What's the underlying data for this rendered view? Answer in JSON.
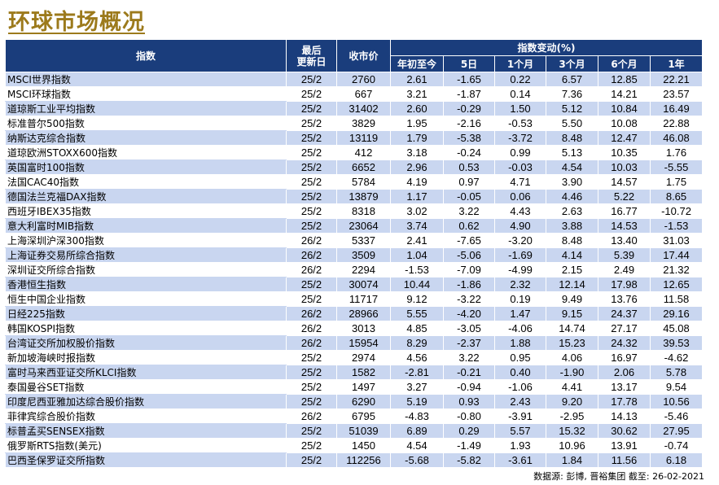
{
  "title": "环球市场概况",
  "headers": {
    "index": "指数",
    "last_update": [
      "最后",
      "更新日"
    ],
    "close": "收市价",
    "change_group": "指数变动(%)",
    "periods": [
      "年初至今",
      "5日",
      "1个月",
      "3个月",
      "6个月",
      "1年"
    ]
  },
  "rows": [
    [
      "MSCI世界指数",
      "25/2",
      "2760",
      "2.61",
      "-1.65",
      "0.22",
      "6.57",
      "12.85",
      "22.21"
    ],
    [
      "MSCI环球指数",
      "25/2",
      "667",
      "3.21",
      "-1.87",
      "0.14",
      "7.36",
      "14.21",
      "23.57"
    ],
    [
      "道琼斯工业平均指数",
      "25/2",
      "31402",
      "2.60",
      "-0.29",
      "1.50",
      "5.12",
      "10.84",
      "16.49"
    ],
    [
      "标准普尔500指数",
      "25/2",
      "3829",
      "1.95",
      "-2.16",
      "-0.53",
      "5.50",
      "10.08",
      "22.88"
    ],
    [
      "纳斯达克综合指数",
      "25/2",
      "13119",
      "1.79",
      "-5.38",
      "-3.72",
      "8.48",
      "12.47",
      "46.08"
    ],
    [
      "道琼欧洲STOXX600指数",
      "25/2",
      "412",
      "3.18",
      "-0.24",
      "0.99",
      "5.13",
      "10.35",
      "1.76"
    ],
    [
      "英国富时100指数",
      "25/2",
      "6652",
      "2.96",
      "0.53",
      "-0.03",
      "4.54",
      "10.03",
      "-5.55"
    ],
    [
      "法国CAC40指数",
      "25/2",
      "5784",
      "4.19",
      "0.97",
      "4.71",
      "3.90",
      "14.57",
      "1.75"
    ],
    [
      "德国法兰克福DAX指数",
      "25/2",
      "13879",
      "1.17",
      "-0.05",
      "0.06",
      "4.46",
      "5.22",
      "8.65"
    ],
    [
      "西班牙IBEX35指数",
      "25/2",
      "8318",
      "3.02",
      "3.22",
      "4.43",
      "2.63",
      "16.77",
      "-10.72"
    ],
    [
      "意大利富时MIB指数",
      "25/2",
      "23064",
      "3.74",
      "0.62",
      "4.90",
      "3.88",
      "14.53",
      "-1.53"
    ],
    [
      "上海深圳沪深300指数",
      "26/2",
      "5337",
      "2.41",
      "-7.65",
      "-3.20",
      "8.48",
      "13.40",
      "31.03"
    ],
    [
      "上海证券交易所综合指数",
      "26/2",
      "3509",
      "1.04",
      "-5.06",
      "-1.69",
      "4.14",
      "5.39",
      "17.44"
    ],
    [
      "深圳证交所综合指数",
      "26/2",
      "2294",
      "-1.53",
      "-7.09",
      "-4.99",
      "2.15",
      "2.49",
      "21.32"
    ],
    [
      "香港恒生指数",
      "25/2",
      "30074",
      "10.44",
      "-1.86",
      "2.32",
      "12.14",
      "17.98",
      "12.65"
    ],
    [
      "恒生中国企业指数",
      "25/2",
      "11717",
      "9.12",
      "-3.22",
      "0.19",
      "9.49",
      "13.76",
      "11.58"
    ],
    [
      "日经225指数",
      "26/2",
      "28966",
      "5.55",
      "-4.20",
      "1.47",
      "9.15",
      "24.37",
      "29.16"
    ],
    [
      "韩国KOSPI指数",
      "26/2",
      "3013",
      "4.85",
      "-3.05",
      "-4.06",
      "14.74",
      "27.17",
      "45.08"
    ],
    [
      "台湾证交所加权股价指数",
      "26/2",
      "15954",
      "8.29",
      "-2.37",
      "1.88",
      "15.23",
      "24.32",
      "39.53"
    ],
    [
      "新加坡海峡时报指数",
      "25/2",
      "2974",
      "4.56",
      "3.22",
      "0.95",
      "4.06",
      "16.97",
      "-4.62"
    ],
    [
      "富时马来西亚证交所KLCI指数",
      "25/2",
      "1582",
      "-2.81",
      "-0.21",
      "0.40",
      "-1.90",
      "2.06",
      "5.78"
    ],
    [
      "泰国曼谷SET指数",
      "25/2",
      "1497",
      "3.27",
      "-0.94",
      "-1.06",
      "4.41",
      "13.17",
      "9.54"
    ],
    [
      "印度尼西亚雅加达综合股价指数",
      "25/2",
      "6290",
      "5.19",
      "0.93",
      "2.43",
      "9.20",
      "17.78",
      "10.56"
    ],
    [
      "菲律宾综合股价指数",
      "26/2",
      "6795",
      "-4.83",
      "-0.80",
      "-3.91",
      "-2.95",
      "14.13",
      "-5.46"
    ],
    [
      "标普孟买SENSEX指数",
      "25/2",
      "51039",
      "6.89",
      "0.29",
      "5.57",
      "15.32",
      "30.62",
      "27.95"
    ],
    [
      "俄罗斯RTS指数(美元)",
      "25/2",
      "1450",
      "4.54",
      "-1.49",
      "1.93",
      "10.96",
      "13.91",
      "-0.74"
    ],
    [
      "巴西圣保罗证交所指数",
      "25/2",
      "112256",
      "-5.68",
      "-5.82",
      "-3.61",
      "1.84",
      "11.56",
      "6.18"
    ]
  ],
  "source": "数据源: 彭博, 晋裕集团 截至: 26-02-2021",
  "colors": {
    "header": "#1a3d7c",
    "stripe": "#c9d6f0",
    "title": "#9c7a1c"
  }
}
